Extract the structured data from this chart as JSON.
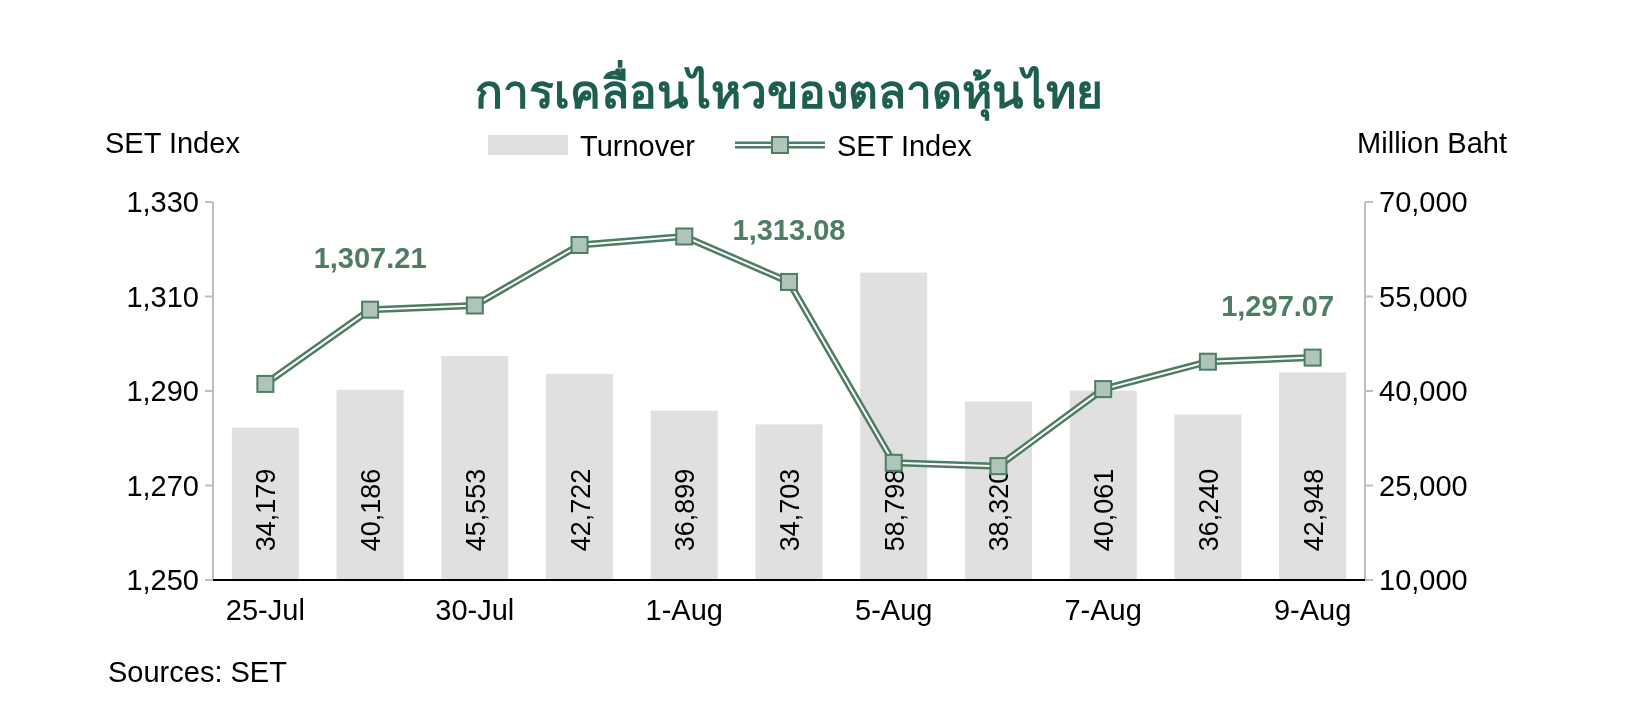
{
  "chart_data": {
    "type": "bar",
    "title": "การเคลื่อนไหวของตลาดหุ้นไทย",
    "ylabel": "SET Index",
    "y2label": "Million Baht",
    "categories": [
      "25-Jul",
      null,
      "30-Jul",
      null,
      "1-Aug",
      null,
      "5-Aug",
      null,
      "7-Aug",
      null,
      "9-Aug"
    ],
    "series": [
      {
        "name": "Turnover",
        "axis": "y2",
        "color": "#e0e0e0",
        "values": [
          34179,
          40186,
          45553,
          42722,
          36899,
          34703,
          58798,
          38320,
          40061,
          36240,
          42948
        ],
        "value_labels": [
          "34,179",
          "40,186",
          "45,553",
          "42,722",
          "36,899",
          "34,703",
          "58,798",
          "38,320",
          "40,061",
          "36,240",
          "42,948"
        ]
      },
      {
        "name": "SET Index",
        "type": "line",
        "axis": "y",
        "color": "#4e7d63",
        "values": [
          1291.5,
          1307.21,
          1308.1,
          1320.9,
          1322.7,
          1313.08,
          1274.8,
          1274.1,
          1290.4,
          1296.2,
          1297.07
        ],
        "value_labels": [
          null,
          "1,307.21",
          null,
          null,
          null,
          "1,313.08",
          null,
          null,
          null,
          null,
          "1,297.07"
        ]
      }
    ],
    "ylim": [
      1250,
      1330
    ],
    "yticks": [
      {
        "value": 1250,
        "label": "1,250"
      },
      {
        "value": 1270,
        "label": "1,270"
      },
      {
        "value": 1290,
        "label": "1,290"
      },
      {
        "value": 1310,
        "label": "1,310"
      },
      {
        "value": 1330,
        "label": "1,330"
      }
    ],
    "y2lim": [
      10000,
      70000
    ],
    "y2ticks": [
      {
        "value": 10000,
        "label": "10,000"
      },
      {
        "value": 25000,
        "label": "25,000"
      },
      {
        "value": 40000,
        "label": "40,000"
      },
      {
        "value": 55000,
        "label": "55,000"
      },
      {
        "value": 70000,
        "label": "70,000"
      }
    ],
    "legend": "top",
    "marker": "square",
    "line_style": "solid",
    "grid": false,
    "annotations": [
      "Sources: SET"
    ]
  }
}
